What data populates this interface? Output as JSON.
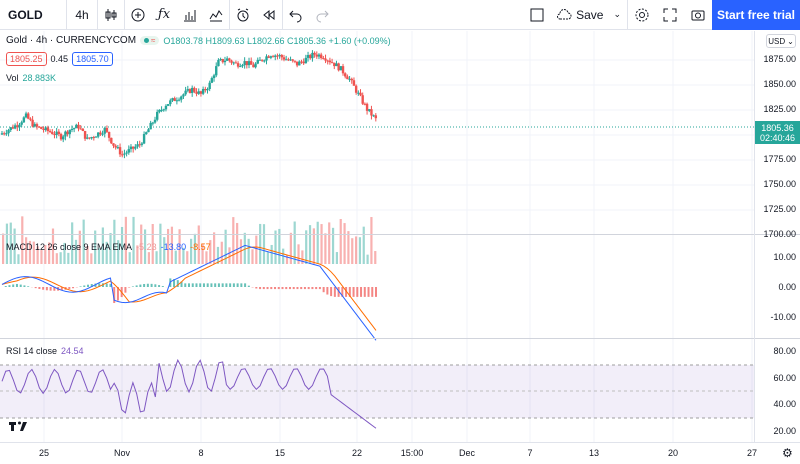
{
  "toolbar": {
    "symbol": "GOLD",
    "interval": "4h",
    "save_label": "Save",
    "start_trial": "Start free trial"
  },
  "legend": {
    "title": "Gold · 4h · CURRENCYCOM",
    "dot_badge": "≈",
    "ohlc": "O1803.78 H1809.63 L1802.66 C1805.36 +1.60 (+0.09%)",
    "bid": "1805.25",
    "spread": "0.45",
    "ask": "1805.70",
    "vol_label": "Vol",
    "vol_value": "28.883K"
  },
  "macd": {
    "label": "MACD 12 26 close 9 EMA EMA",
    "v1": "-5.23",
    "v2": "-13.80",
    "v3": "-8.57"
  },
  "rsi": {
    "label": "RSI 14 close",
    "value": "24.54"
  },
  "price_axis": {
    "currency": "USD",
    "labels": [
      "1875.00",
      "1850.00",
      "1825.00",
      "1800.00",
      "1775.00",
      "1750.00",
      "1725.00",
      "1700.00"
    ],
    "current": "1805.36",
    "countdown": "02:40:46",
    "macd_labels": [
      "10.00",
      "0.00",
      "-10.00"
    ],
    "rsi_labels": [
      "80.00",
      "60.00",
      "40.00",
      "20.00"
    ]
  },
  "time_axis": [
    "25",
    "Nov",
    "8",
    "15",
    "22",
    "15:00",
    "Dec",
    "7",
    "13",
    "20",
    "27"
  ],
  "colors": {
    "up": "#26a69a",
    "down": "#ef5350",
    "accent": "#2962ff",
    "macd": "#2962ff",
    "signal": "#ff6d00",
    "rsi": "#7e57c2"
  },
  "chart_data": [
    {
      "type": "candlestick",
      "series": [
        {
          "name": "Gold",
          "close_approx": [
            1790,
            1795,
            1800,
            1808,
            1798,
            1795,
            1792,
            1788,
            1795,
            1798,
            1785,
            1790,
            1795,
            1780,
            1770,
            1775,
            1780,
            1795,
            1810,
            1820,
            1825,
            1830,
            1835,
            1830,
            1840,
            1862,
            1865,
            1860,
            1862,
            1858,
            1865,
            1870,
            1868,
            1864,
            1860,
            1865,
            1870,
            1868,
            1862,
            1855,
            1845,
            1830,
            1815,
            1805
          ]
        }
      ],
      "ylim": [
        1690,
        1885
      ]
    },
    {
      "type": "bar",
      "series": [
        {
          "name": "Vol"
        }
      ]
    },
    {
      "type": "line",
      "series": [
        {
          "name": "MACD"
        },
        {
          "name": "Signal"
        },
        {
          "name": "Histogram"
        }
      ],
      "ylim": [
        -15,
        15
      ]
    },
    {
      "type": "line",
      "series": [
        {
          "name": "RSI"
        }
      ],
      "ylim": [
        15,
        85
      ]
    }
  ]
}
